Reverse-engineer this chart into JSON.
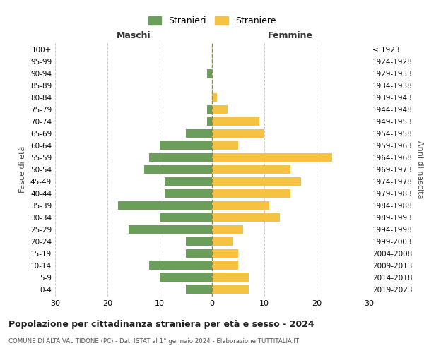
{
  "age_groups": [
    "0-4",
    "5-9",
    "10-14",
    "15-19",
    "20-24",
    "25-29",
    "30-34",
    "35-39",
    "40-44",
    "45-49",
    "50-54",
    "55-59",
    "60-64",
    "65-69",
    "70-74",
    "75-79",
    "80-84",
    "85-89",
    "90-94",
    "95-99",
    "100+"
  ],
  "birth_years": [
    "2019-2023",
    "2014-2018",
    "2009-2013",
    "2004-2008",
    "1999-2003",
    "1994-1998",
    "1989-1993",
    "1984-1988",
    "1979-1983",
    "1974-1978",
    "1969-1973",
    "1964-1968",
    "1959-1963",
    "1954-1958",
    "1949-1953",
    "1944-1948",
    "1939-1943",
    "1934-1938",
    "1929-1933",
    "1924-1928",
    "≤ 1923"
  ],
  "maschi": [
    5,
    10,
    12,
    5,
    5,
    16,
    10,
    18,
    9,
    9,
    13,
    12,
    10,
    5,
    1,
    1,
    0,
    0,
    1,
    0,
    0
  ],
  "femmine": [
    7,
    7,
    5,
    5,
    4,
    6,
    13,
    11,
    15,
    17,
    15,
    23,
    5,
    10,
    9,
    3,
    1,
    0,
    0,
    0,
    0
  ],
  "male_color": "#6a9e5a",
  "female_color": "#f5c242",
  "dashed_color": "#8B8B5A",
  "title": "Popolazione per cittadinanza straniera per età e sesso - 2024",
  "subtitle": "COMUNE DI ALTA VAL TIDONE (PC) - Dati ISTAT al 1° gennaio 2024 - Elaborazione TUTTITALIA.IT",
  "left_label": "Maschi",
  "right_label": "Femmine",
  "ylabel_left": "Fasce di età",
  "ylabel_right": "Anni di nascita",
  "legend_male": "Stranieri",
  "legend_female": "Straniere",
  "xlim": 30,
  "background_color": "#ffffff",
  "grid_color": "#cccccc"
}
